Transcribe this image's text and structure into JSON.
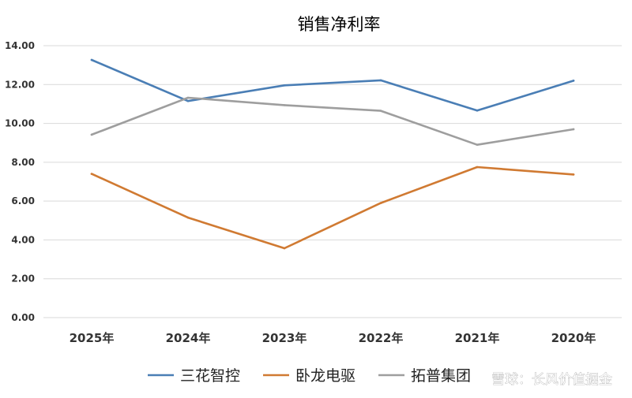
{
  "chart_data": {
    "type": "line",
    "title": "销售净利率",
    "categories": [
      "2025年",
      "2024年",
      "2023年",
      "2022年",
      "2021年",
      "2020年"
    ],
    "series": [
      {
        "name": "三花智控",
        "color": "#4a7eb5",
        "values": [
          13.27,
          11.15,
          11.96,
          12.22,
          10.66,
          12.2
        ]
      },
      {
        "name": "卧龙电驱",
        "color": "#d07a32",
        "values": [
          7.4,
          5.15,
          3.57,
          5.9,
          7.75,
          7.37
        ]
      },
      {
        "name": "拓普集团",
        "color": "#9e9e9e",
        "values": [
          9.42,
          11.32,
          10.94,
          10.65,
          8.9,
          9.7
        ]
      }
    ],
    "ylim": [
      0,
      14
    ],
    "yticks": [
      "0.00",
      "2.00",
      "4.00",
      "6.00",
      "8.00",
      "10.00",
      "12.00",
      "14.00"
    ],
    "grid": true,
    "legend_position": "bottom"
  },
  "watermark": "雪球：长风价值掘金"
}
